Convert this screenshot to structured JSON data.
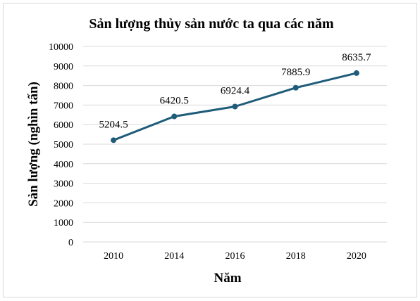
{
  "chart_data": {
    "type": "line",
    "title": "Sản lượng thủy sản nước ta qua các năm",
    "xlabel": "Năm",
    "ylabel": "Sản lượng (nghìn tấn)",
    "categories": [
      "2010",
      "2014",
      "2016",
      "2018",
      "2020"
    ],
    "series": [
      {
        "values": [
          5204.5,
          6420.5,
          6924.4,
          7885.9,
          8635.7
        ],
        "color": "#1f5c7a"
      }
    ],
    "data_labels": [
      "5204.5",
      "6420.5",
      "6924.4",
      "7885.9",
      "8635.7"
    ],
    "y_ticks": [
      "0",
      "1000",
      "2000",
      "3000",
      "4000",
      "5000",
      "6000",
      "7000",
      "8000",
      "9000",
      "10000"
    ],
    "ylim": [
      0,
      10000
    ],
    "grid": true,
    "gridline_color": "#d9d9d9"
  }
}
